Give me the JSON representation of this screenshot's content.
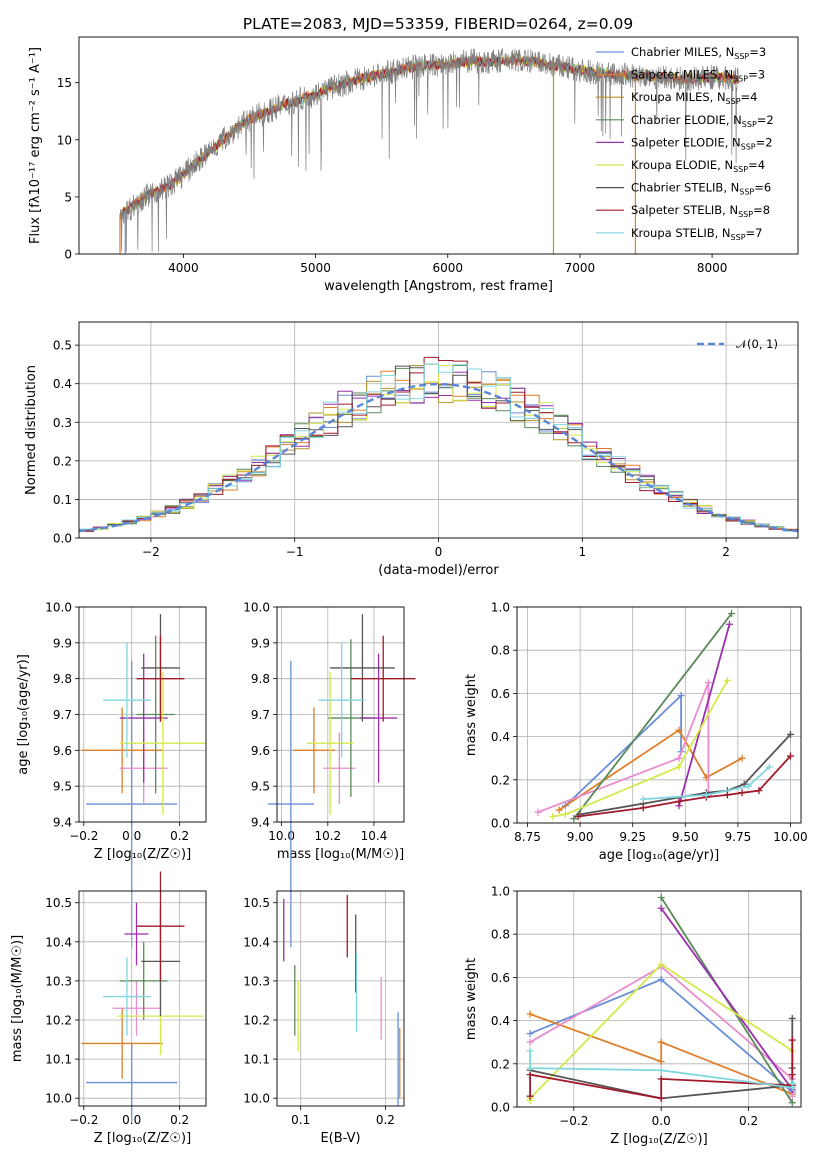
{
  "figure_title": "PLATE=2083, MJD=53359, FIBERID=0264, z=0.09",
  "series_legend": [
    {
      "label": "Chabrier MILES, N$_{SSP}$=3",
      "label_main": "Chabrier MILES, N",
      "label_sub": "SSP",
      "label_end": "=3",
      "color": "#6a8fd6"
    },
    {
      "label": "Salpeter MILES, N$_{SSP}$=3",
      "label_main": "Salpeter MILES, N",
      "label_sub": "SSP",
      "label_end": "=3",
      "color": "#e07f2a"
    },
    {
      "label": "Kroupa MILES, N$_{SSP}$=4",
      "label_main": "Kroupa MILES, N",
      "label_sub": "SSP",
      "label_end": "=4",
      "color": "#b8942a"
    },
    {
      "label": "Chabrier ELODIE, N$_{SSP}$=2",
      "label_main": "Chabrier ELODIE, N",
      "label_sub": "SSP",
      "label_end": "=2",
      "color": "#5a8a5a"
    },
    {
      "label": "Salpeter ELODIE, N$_{SSP}$=2",
      "label_main": "Salpeter ELODIE, N",
      "label_sub": "SSP",
      "label_end": "=2",
      "color": "#9b2fae"
    },
    {
      "label": "Kroupa ELODIE, N$_{SSP}$=4",
      "label_main": "Kroupa ELODIE, N",
      "label_sub": "SSP",
      "label_end": "=4",
      "color": "#d4e84a"
    },
    {
      "label": "Chabrier STELIB, N$_{SSP}$=6",
      "label_main": "Chabrier STELIB, N",
      "label_sub": "SSP",
      "label_end": "=6",
      "color": "#555555"
    },
    {
      "label": "Salpeter STELIB, N$_{SSP}$=8",
      "label_main": "Salpeter STELIB, N",
      "label_sub": "SSP",
      "label_end": "=8",
      "color": "#a01a2a"
    },
    {
      "label": "Kroupa STELIB, N$_{SSP}$=7",
      "label_main": "Kroupa STELIB, N",
      "label_sub": "SSP",
      "label_end": "=7",
      "color": "#7fd6de"
    }
  ],
  "chart_data": [
    {
      "id": "spectrum",
      "type": "line",
      "xlabel": "wavelength [Angstrom, rest frame]",
      "ylabel": "Flux [f$_\\lambda$10$^{-17}$ erg cm$^{-2}$ s$^{-1}$ A$^{-1}$]",
      "ylabel_display": "Flux [fλ10⁻¹⁷ erg cm⁻² s⁻¹ A⁻¹]",
      "xlim": [
        3210,
        8650
      ],
      "ylim": [
        0,
        19
      ],
      "xticks": [
        4000,
        5000,
        6000,
        7000,
        8000
      ],
      "yticks": [
        0,
        5,
        10,
        15
      ],
      "legend": "right",
      "data_continuum": {
        "x": [
          3520,
          3600,
          3700,
          3800,
          3900,
          4000,
          4100,
          4200,
          4300,
          4400,
          4500,
          4600,
          4700,
          4800,
          4900,
          5000,
          5100,
          5200,
          5300,
          5400,
          5500,
          5600,
          5700,
          5800,
          5900,
          6000,
          6100,
          6200,
          6300,
          6400,
          6500,
          6600,
          6700,
          6800,
          6900,
          7000,
          7100,
          7200,
          7300,
          7400,
          7500,
          7600,
          7700,
          7800,
          7900,
          8000,
          8100,
          8200
        ],
        "y": [
          3.5,
          4.0,
          5.0,
          5.5,
          6.0,
          7.0,
          8.0,
          9.0,
          10.0,
          11.0,
          11.8,
          12.3,
          12.8,
          13.2,
          13.6,
          14.0,
          14.5,
          14.8,
          15.2,
          15.5,
          15.8,
          16.0,
          16.3,
          16.5,
          16.5,
          16.6,
          16.8,
          16.9,
          16.8,
          16.9,
          17.0,
          16.9,
          16.7,
          16.5,
          16.3,
          16.1,
          15.9,
          15.8,
          15.7,
          15.6,
          15.6,
          15.5,
          15.4,
          15.3,
          15.4,
          15.5,
          15.4,
          15.3
        ]
      },
      "drop_lines": [
        {
          "x": 3520,
          "color": "#e07f2a"
        },
        {
          "x": 3560,
          "color": "#6a8fd6"
        },
        {
          "x": 6800,
          "color": "#b8942a"
        },
        {
          "x": 7420,
          "color": "#e07f2a"
        }
      ]
    },
    {
      "id": "residuals",
      "type": "histogram",
      "xlabel": "(data-model)/error",
      "ylabel": "Normed distribution",
      "xlim": [
        -2.5,
        2.5
      ],
      "ylim": [
        0,
        0.56
      ],
      "xticks": [
        -2,
        -1,
        0,
        1,
        2
      ],
      "yticks": [
        0.0,
        0.1,
        0.2,
        0.3,
        0.4,
        0.5
      ],
      "grid": true,
      "bin_width": 0.1,
      "legend_label": "$\\mathcal{N}(0,1)$",
      "legend_display": "𝒩(0, 1)",
      "legend_position": "top-right",
      "reference_curve": {
        "name": "N(0,1)",
        "mu": 0,
        "sigma": 1
      }
    },
    {
      "id": "age_vs_Z",
      "type": "errorbar",
      "xlabel": "Z [log$_{10}$(Z/Z$_\\odot$)]",
      "xlabel_display": "Z [log₁₀(Z/Z☉)]",
      "ylabel": "age  [log$_{10}$(age/yr)]",
      "ylabel_display": "age  [log₁₀(age/yr)]",
      "xlim": [
        -0.22,
        0.31
      ],
      "ylim": [
        9.4,
        10.0
      ],
      "xticks": [
        -0.2,
        0.0,
        0.2
      ],
      "yticks": [
        9.4,
        9.5,
        9.6,
        9.7,
        9.8,
        9.9,
        10.0
      ],
      "grid": true,
      "points": [
        {
          "x": 0.0,
          "y": 9.45,
          "xerr": 0.19,
          "yerr": 0.4,
          "color": "#6a8fd6"
        },
        {
          "x": -0.04,
          "y": 9.6,
          "xerr": 0.17,
          "yerr": 0.12,
          "color": "#e07f2a"
        },
        {
          "x": 0.05,
          "y": 9.55,
          "xerr": 0.1,
          "yerr": 0.1,
          "color": "#e88ccf"
        },
        {
          "x": 0.1,
          "y": 9.7,
          "xerr": 0.08,
          "yerr": 0.22,
          "color": "#5a8a5a"
        },
        {
          "x": 0.05,
          "y": 9.69,
          "xerr": 0.1,
          "yerr": 0.18,
          "color": "#9b2fae"
        },
        {
          "x": 0.13,
          "y": 9.62,
          "xerr": 0.18,
          "yerr": 0.2,
          "color": "#d4e84a"
        },
        {
          "x": 0.12,
          "y": 9.83,
          "xerr": 0.08,
          "yerr": 0.15,
          "color": "#555555"
        },
        {
          "x": 0.12,
          "y": 9.8,
          "xerr": 0.1,
          "yerr": 0.12,
          "color": "#a01a2a"
        },
        {
          "x": -0.02,
          "y": 9.74,
          "xerr": 0.1,
          "yerr": 0.16,
          "color": "#7fd6de"
        }
      ]
    },
    {
      "id": "age_vs_mass",
      "type": "errorbar",
      "xlabel": "mass [log$_{10}$(M/M$_\\odot$)]",
      "xlabel_display": "mass [log₁₀(M/M☉)]",
      "xlim": [
        9.98,
        10.53
      ],
      "ylim": [
        9.4,
        10.0
      ],
      "xticks": [
        10.0,
        10.2,
        10.4
      ],
      "yticks": [
        9.4,
        9.5,
        9.6,
        9.7,
        9.8,
        9.9,
        10.0
      ],
      "grid": true,
      "points": [
        {
          "x": 10.04,
          "y": 9.45,
          "xerr": 0.1,
          "yerr": 0.4,
          "color": "#6a8fd6"
        },
        {
          "x": 10.14,
          "y": 9.6,
          "xerr": 0.09,
          "yerr": 0.12,
          "color": "#e07f2a"
        },
        {
          "x": 10.25,
          "y": 9.55,
          "xerr": 0.07,
          "yerr": 0.1,
          "color": "#e88ccf"
        },
        {
          "x": 10.3,
          "y": 9.69,
          "xerr": 0.1,
          "yerr": 0.22,
          "color": "#5a8a5a"
        },
        {
          "x": 10.42,
          "y": 9.69,
          "xerr": 0.08,
          "yerr": 0.18,
          "color": "#9b2fae"
        },
        {
          "x": 10.21,
          "y": 9.62,
          "xerr": 0.1,
          "yerr": 0.2,
          "color": "#d4e84a"
        },
        {
          "x": 10.35,
          "y": 9.83,
          "xerr": 0.14,
          "yerr": 0.15,
          "color": "#555555"
        },
        {
          "x": 10.44,
          "y": 9.8,
          "xerr": 0.14,
          "yerr": 0.12,
          "color": "#a01a2a"
        },
        {
          "x": 10.26,
          "y": 9.74,
          "xerr": 0.1,
          "yerr": 0.16,
          "color": "#7fd6de"
        }
      ]
    },
    {
      "id": "weight_vs_age",
      "type": "line",
      "xlabel": "age  [log$_{10}$(age/yr)]",
      "xlabel_display": "age  [log₁₀(age/yr)]",
      "ylabel": "mass weight",
      "xlim": [
        8.7,
        10.05
      ],
      "ylim": [
        0,
        1.0
      ],
      "xticks": [
        8.75,
        9.0,
        9.25,
        9.5,
        9.75,
        10.0
      ],
      "yticks": [
        0.0,
        0.2,
        0.4,
        0.6,
        0.8,
        1.0
      ],
      "grid": true,
      "series": [
        {
          "color": "#6a8fd6",
          "x": [
            8.93,
            9.48,
            9.48
          ],
          "y": [
            0.08,
            0.59,
            0.33
          ]
        },
        {
          "color": "#e07f2a",
          "x": [
            8.9,
            9.47,
            9.6,
            9.77
          ],
          "y": [
            0.06,
            0.43,
            0.21,
            0.3
          ]
        },
        {
          "color": "#e88ccf",
          "x": [
            8.8,
            9.47,
            9.61,
            9.61
          ],
          "y": [
            0.05,
            0.3,
            0.65,
            0.13
          ]
        },
        {
          "color": "#5a8a5a",
          "x": [
            8.97,
            9.72
          ],
          "y": [
            0.02,
            0.97
          ]
        },
        {
          "color": "#9b2fae",
          "x": [
            9.47,
            9.71
          ],
          "y": [
            0.08,
            0.92
          ]
        },
        {
          "color": "#d4e84a",
          "x": [
            8.87,
            8.93,
            9.47,
            9.7
          ],
          "y": [
            0.03,
            0.04,
            0.26,
            0.66
          ]
        },
        {
          "color": "#555555",
          "x": [
            9.0,
            9.3,
            9.6,
            9.7,
            9.78,
            10.0
          ],
          "y": [
            0.04,
            0.09,
            0.14,
            0.15,
            0.18,
            0.41
          ]
        },
        {
          "color": "#a01a2a",
          "x": [
            8.99,
            9.3,
            9.47,
            9.6,
            9.7,
            9.77,
            9.85,
            10.0
          ],
          "y": [
            0.03,
            0.07,
            0.1,
            0.12,
            0.13,
            0.14,
            0.15,
            0.31
          ]
        },
        {
          "color": "#7fd6de",
          "x": [
            9.3,
            9.6,
            9.8,
            9.9
          ],
          "y": [
            0.11,
            0.13,
            0.17,
            0.26
          ]
        }
      ]
    },
    {
      "id": "mass_vs_Z",
      "type": "errorbar",
      "xlabel": "Z [log$_{10}$(Z/Z$_\\odot$)]",
      "xlabel_display": "Z [log₁₀(Z/Z☉)]",
      "ylabel": "mass [log$_{10}$(M/M$_\\odot$)]",
      "ylabel_display": "mass [log₁₀(M/M☉)]",
      "xlim": [
        -0.22,
        0.31
      ],
      "ylim": [
        9.98,
        10.53
      ],
      "xticks": [
        -0.2,
        0.0,
        0.2
      ],
      "yticks": [
        10.0,
        10.1,
        10.2,
        10.3,
        10.4,
        10.5
      ],
      "grid": true,
      "points": [
        {
          "x": 0.0,
          "y": 10.04,
          "xerr": 0.19,
          "yerr": 0.1,
          "color": "#6a8fd6"
        },
        {
          "x": -0.04,
          "y": 10.14,
          "xerr": 0.17,
          "yerr": 0.09,
          "color": "#e07f2a"
        },
        {
          "x": 0.02,
          "y": 10.23,
          "xerr": 0.1,
          "yerr": 0.07,
          "color": "#e88ccf"
        },
        {
          "x": 0.05,
          "y": 10.3,
          "xerr": 0.1,
          "yerr": 0.1,
          "color": "#5a8a5a"
        },
        {
          "x": 0.02,
          "y": 10.42,
          "xerr": 0.05,
          "yerr": 0.08,
          "color": "#9b2fae"
        },
        {
          "x": 0.12,
          "y": 10.21,
          "xerr": 0.18,
          "yerr": 0.1,
          "color": "#d4e84a"
        },
        {
          "x": 0.12,
          "y": 10.35,
          "xerr": 0.08,
          "yerr": 0.14,
          "color": "#555555"
        },
        {
          "x": 0.12,
          "y": 10.44,
          "xerr": 0.1,
          "yerr": 0.14,
          "color": "#a01a2a"
        },
        {
          "x": -0.02,
          "y": 10.26,
          "xerr": 0.1,
          "yerr": 0.1,
          "color": "#7fd6de"
        }
      ]
    },
    {
      "id": "mass_vs_ebv",
      "type": "errorbar",
      "xlabel": "E(B-V)",
      "xlim": [
        0.072,
        0.222
      ],
      "ylim": [
        9.98,
        10.53
      ],
      "xticks": [
        0.1,
        0.2
      ],
      "yticks": [
        10.0,
        10.1,
        10.2,
        10.3,
        10.4,
        10.5
      ],
      "grid": true,
      "points": [
        {
          "x": 0.215,
          "y": 10.1,
          "yerr": 0.12,
          "color": "#6a8fd6"
        },
        {
          "x": 0.217,
          "y": 10.09,
          "yerr": 0.09,
          "color": "#e07f2a"
        },
        {
          "x": 0.195,
          "y": 10.23,
          "yerr": 0.08,
          "color": "#e88ccf"
        },
        {
          "x": 0.093,
          "y": 10.25,
          "yerr": 0.09,
          "color": "#5a8a5a"
        },
        {
          "x": 0.08,
          "y": 10.43,
          "yerr": 0.08,
          "color": "#9b2fae"
        },
        {
          "x": 0.097,
          "y": 10.21,
          "yerr": 0.09,
          "color": "#d4e84a"
        },
        {
          "x": 0.165,
          "y": 10.37,
          "yerr": 0.1,
          "color": "#555555"
        },
        {
          "x": 0.155,
          "y": 10.44,
          "yerr": 0.08,
          "color": "#a01a2a"
        },
        {
          "x": 0.166,
          "y": 10.27,
          "yerr": 0.1,
          "color": "#7fd6de"
        }
      ]
    },
    {
      "id": "weight_vs_Z",
      "type": "line",
      "xlabel": "Z [log$_{10}$(Z/Z$_\\odot$)]",
      "xlabel_display": "Z [log₁₀(Z/Z☉)]",
      "ylabel": "mass weight",
      "xlim": [
        -0.33,
        0.32
      ],
      "ylim": [
        0,
        1.0
      ],
      "xticks": [
        -0.2,
        0.0,
        0.2
      ],
      "yticks": [
        0.0,
        0.2,
        0.4,
        0.6,
        0.8,
        1.0
      ],
      "grid": true,
      "series": [
        {
          "color": "#6a8fd6",
          "x": [
            -0.3,
            0.0,
            0.3,
            0.3
          ],
          "y": [
            0.34,
            0.59,
            0.07,
            0.09
          ]
        },
        {
          "color": "#e07f2a",
          "x": [
            -0.3,
            0.0,
            0.0,
            0.3
          ],
          "y": [
            0.43,
            0.21,
            0.3,
            0.06
          ]
        },
        {
          "color": "#e88ccf",
          "x": [
            -0.3,
            0.0,
            0.3,
            0.3
          ],
          "y": [
            0.3,
            0.65,
            0.13,
            0.05
          ]
        },
        {
          "color": "#5a8a5a",
          "x": [
            0.0,
            0.3
          ],
          "y": [
            0.97,
            0.02
          ]
        },
        {
          "color": "#9b2fae",
          "x": [
            0.0,
            0.3
          ],
          "y": [
            0.92,
            0.08
          ]
        },
        {
          "color": "#d4e84a",
          "x": [
            -0.3,
            -0.3,
            0.0,
            0.3
          ],
          "y": [
            0.03,
            0.04,
            0.66,
            0.26
          ]
        },
        {
          "color": "#555555",
          "x": [
            -0.3,
            0.0,
            0.3,
            0.3,
            0.3
          ],
          "y": [
            0.17,
            0.04,
            0.1,
            0.18,
            0.41
          ]
        },
        {
          "color": "#a01a2a",
          "x": [
            -0.3,
            -0.3,
            0.0,
            0.0,
            0.3,
            0.3,
            0.3
          ],
          "y": [
            0.05,
            0.15,
            0.04,
            0.13,
            0.1,
            0.15,
            0.31
          ]
        },
        {
          "color": "#7fd6de",
          "x": [
            -0.3,
            -0.3,
            0.0,
            0.3,
            0.3
          ],
          "y": [
            0.26,
            0.18,
            0.17,
            0.09,
            0.11
          ]
        }
      ]
    }
  ]
}
